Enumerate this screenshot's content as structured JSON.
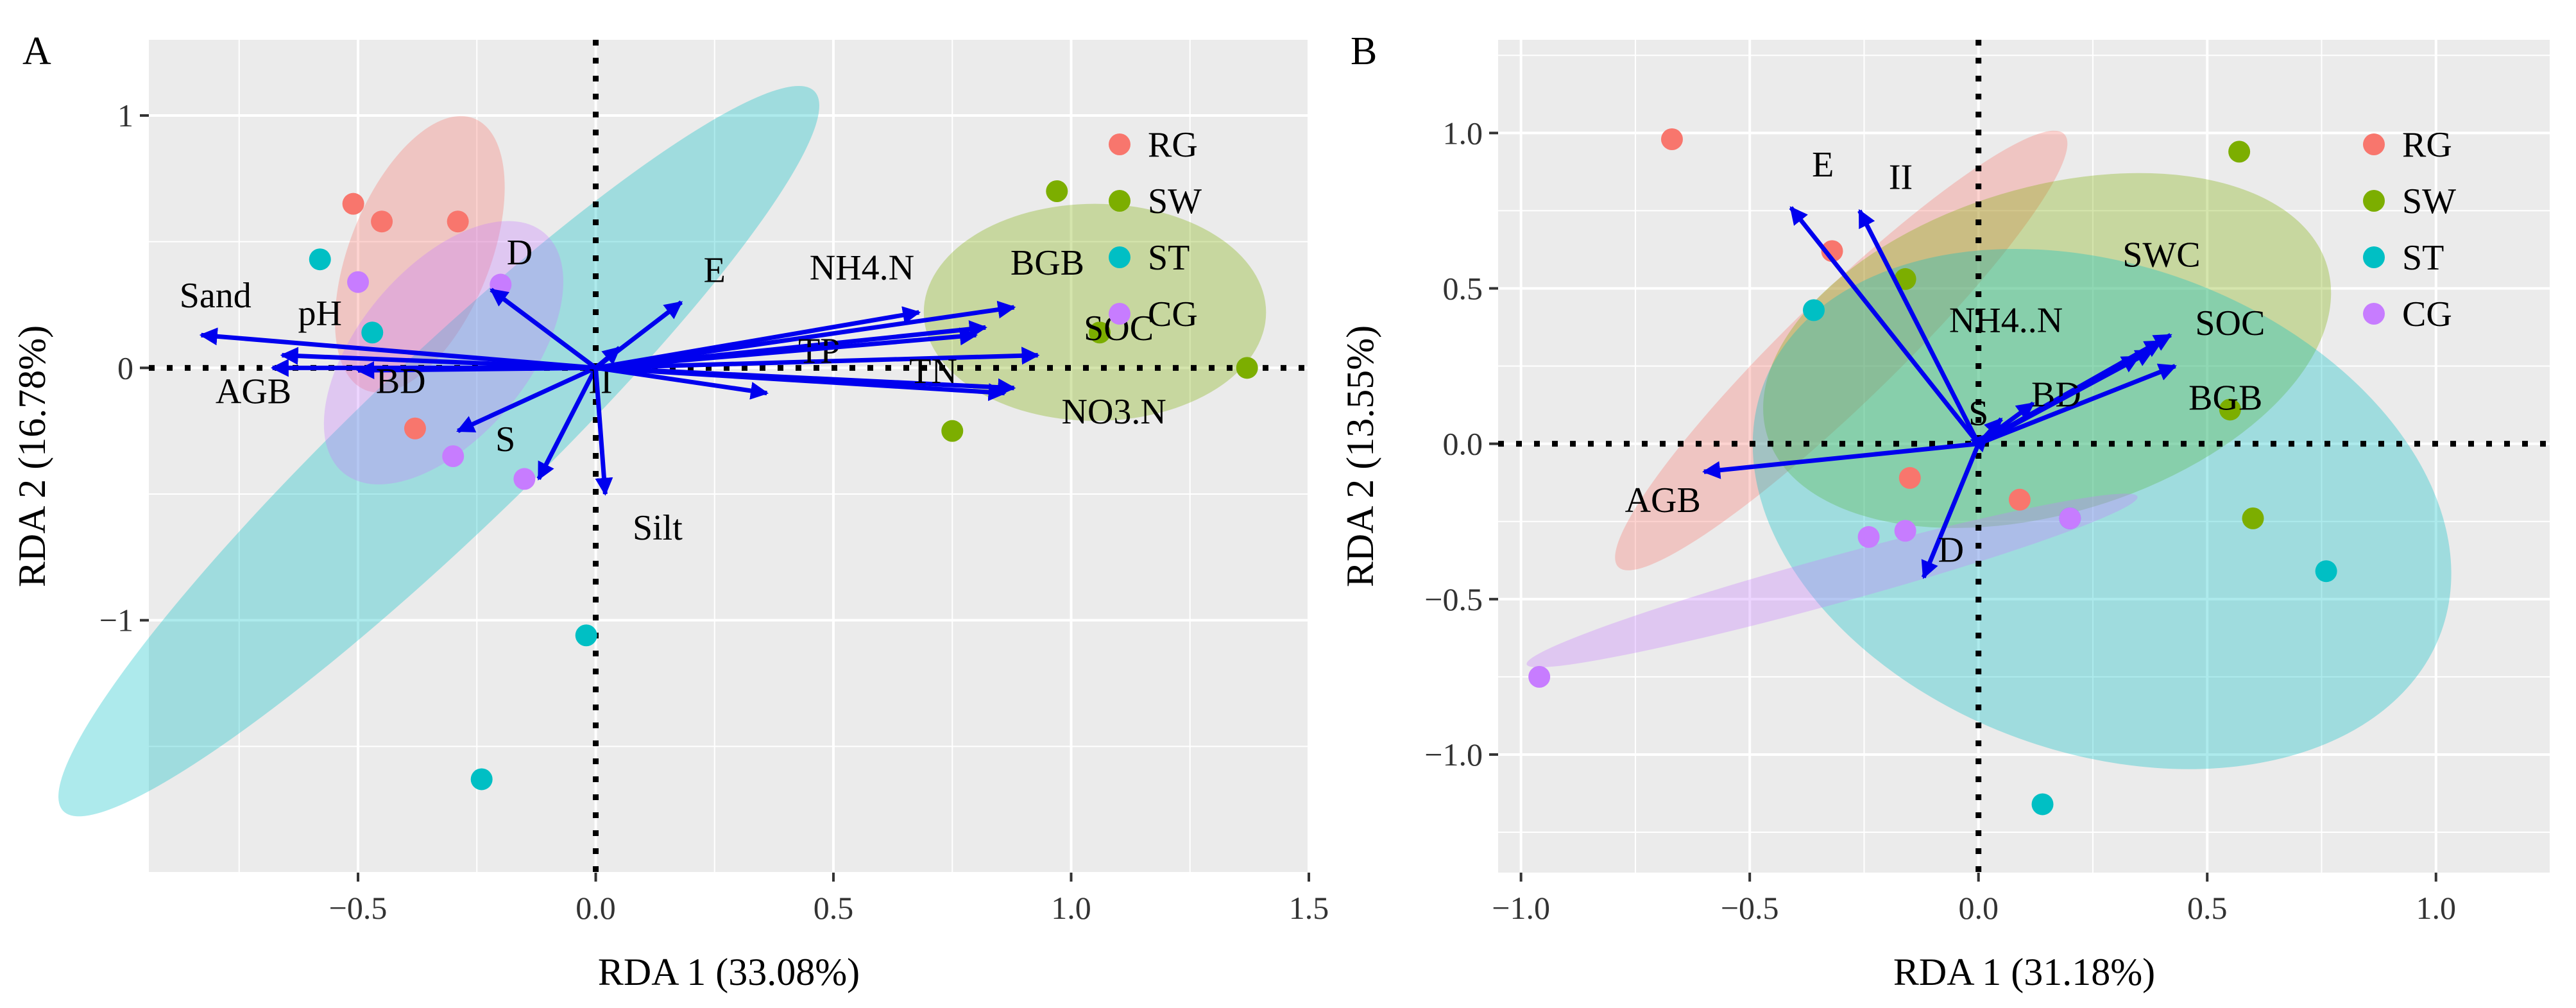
{
  "chart_data": [
    {
      "type": "scatter",
      "panel_label": "A",
      "xlabel": "RDA 1 (33.08%)",
      "ylabel": "RDA 2 (16.78%)",
      "xlim": [
        -0.94,
        1.5
      ],
      "ylim": [
        -2.0,
        1.3
      ],
      "xticks": [
        -0.5,
        0.0,
        0.5,
        1.0,
        1.5
      ],
      "xtick_labels": [
        "−0.5",
        "0.0",
        "0.5",
        "1.0",
        "1.5"
      ],
      "yticks": [
        -1,
        0,
        1
      ],
      "ytick_labels": [
        "−1",
        "0",
        "1"
      ],
      "legend": {
        "position": "top-right",
        "entries": [
          "RG",
          "SW",
          "ST",
          "CG"
        ]
      },
      "groups": [
        {
          "name": "RG",
          "color": "#F8766D",
          "points": [
            [
              -0.51,
              0.65
            ],
            [
              -0.45,
              0.58
            ],
            [
              -0.29,
              0.58
            ],
            [
              -0.38,
              -0.24
            ]
          ],
          "ellipse": {
            "cx": -0.37,
            "cy": 0.45,
            "rx": 0.55,
            "ry": 0.15,
            "angle": 78
          }
        },
        {
          "name": "SW",
          "color": "#7CAE00",
          "points": [
            [
              0.97,
              0.7
            ],
            [
              1.06,
              0.14
            ],
            [
              0.75,
              -0.25
            ],
            [
              1.37,
              0.0
            ]
          ],
          "ellipse": {
            "cx": 1.05,
            "cy": 0.22,
            "rx": 0.36,
            "ry": 0.43,
            "angle": 0
          }
        },
        {
          "name": "ST",
          "color": "#00BFC4",
          "points": [
            [
              -0.58,
              0.43
            ],
            [
              -0.47,
              0.14
            ],
            [
              -0.02,
              -1.06
            ],
            [
              -0.24,
              -1.63
            ]
          ],
          "ellipse": {
            "cx": -0.33,
            "cy": -0.33,
            "rx": 1.63,
            "ry": 0.2,
            "angle": 61
          }
        },
        {
          "name": "CG",
          "color": "#C77CFF",
          "points": [
            [
              -0.5,
              0.34
            ],
            [
              -0.3,
              -0.35
            ],
            [
              -0.15,
              -0.44
            ],
            [
              -0.2,
              0.33
            ]
          ],
          "ellipse": {
            "cx": -0.32,
            "cy": 0.06,
            "rx": 0.52,
            "ry": 0.19,
            "angle": 66
          }
        }
      ],
      "arrows": [
        {
          "label": "Sand",
          "x": -0.83,
          "y": 0.13,
          "lx": -0.8,
          "ly": 0.24
        },
        {
          "label": "pH",
          "x": -0.66,
          "y": 0.05,
          "lx": -0.58,
          "ly": 0.17
        },
        {
          "label": "AGB",
          "x": -0.68,
          "y": 0.0,
          "lx": -0.72,
          "ly": -0.14
        },
        {
          "label": "BD",
          "x": -0.5,
          "y": -0.01,
          "lx": -0.41,
          "ly": -0.1
        },
        {
          "label": "D",
          "x": -0.22,
          "y": 0.31,
          "lx": -0.16,
          "ly": 0.41
        },
        {
          "label": "S",
          "x": -0.29,
          "y": -0.25,
          "lx": -0.19,
          "ly": -0.33
        },
        {
          "label": "E",
          "x": 0.18,
          "y": 0.26,
          "lx": 0.25,
          "ly": 0.34
        },
        {
          "label": "II",
          "x": -0.12,
          "y": -0.44,
          "lx": 0.01,
          "ly": -0.1
        },
        {
          "label": "Silt",
          "x": 0.02,
          "y": -0.5,
          "lx": 0.13,
          "ly": -0.68
        },
        {
          "label": "NH4.N",
          "x": 0.68,
          "y": 0.22,
          "lx": 0.56,
          "ly": 0.35
        },
        {
          "label": "BGB",
          "x": 0.88,
          "y": 0.24,
          "lx": 0.95,
          "ly": 0.37
        },
        {
          "label": "SOC",
          "x": 0.93,
          "y": 0.05,
          "lx": 1.1,
          "ly": 0.11
        },
        {
          "label": "TP",
          "x": 0.82,
          "y": 0.16,
          "lx": 0.47,
          "ly": 0.02
        },
        {
          "label": "TN",
          "x": 0.88,
          "y": -0.08,
          "lx": 0.71,
          "ly": -0.06
        },
        {
          "label": "NO3.N",
          "x": 0.86,
          "y": -0.1,
          "lx": 1.09,
          "ly": -0.22
        },
        {
          "label": "",
          "x": 0.36,
          "y": -0.1,
          "lx": 0,
          "ly": 0
        },
        {
          "label": "",
          "x": 0.8,
          "y": 0.13,
          "lx": 0,
          "ly": 0
        },
        {
          "label": "",
          "x": 0.05,
          "y": 0.08,
          "lx": 0,
          "ly": 0
        }
      ]
    },
    {
      "type": "scatter",
      "panel_label": "B",
      "xlabel": "RDA 1 (31.18%)",
      "ylabel": "RDA 2 (13.55%)",
      "xlim": [
        -1.05,
        1.25
      ],
      "ylim": [
        -1.38,
        1.3
      ],
      "xticks": [
        -1.0,
        -0.5,
        0.0,
        0.5,
        1.0
      ],
      "xtick_labels": [
        "−1.0",
        "−0.5",
        "0.0",
        "0.5",
        "1.0"
      ],
      "yticks": [
        -1.0,
        -0.5,
        0.0,
        0.5,
        1.0
      ],
      "ytick_labels": [
        "−1.0",
        "−0.5",
        "0.0",
        "0.5",
        "1.0"
      ],
      "legend": {
        "position": "top-right",
        "entries": [
          "RG",
          "SW",
          "ST",
          "CG"
        ]
      },
      "groups": [
        {
          "name": "RG",
          "color": "#F8766D",
          "points": [
            [
              -0.67,
              0.98
            ],
            [
              -0.32,
              0.62
            ],
            [
              0.09,
              -0.18
            ],
            [
              -0.15,
              -0.11
            ]
          ],
          "ellipse": {
            "cx": -0.3,
            "cy": 0.3,
            "rx": 0.85,
            "ry": 0.13,
            "angle": 55
          }
        },
        {
          "name": "SW",
          "color": "#7CAE00",
          "points": [
            [
              0.57,
              0.94
            ],
            [
              0.6,
              -0.24
            ],
            [
              -0.16,
              0.53
            ],
            [
              0.55,
              0.11
            ]
          ],
          "ellipse": {
            "cx": 0.15,
            "cy": 0.3,
            "rx": 0.67,
            "ry": 0.48,
            "angle": 24
          }
        },
        {
          "name": "ST",
          "color": "#00BFC4",
          "points": [
            [
              -0.36,
              0.43
            ],
            [
              0.76,
              -0.41
            ],
            [
              0.14,
              -1.16
            ],
            [
              0.2,
              -0.24
            ]
          ],
          "ellipse": {
            "cx": 0.27,
            "cy": -0.21,
            "rx": 0.84,
            "ry": 0.7,
            "angle": -28
          }
        },
        {
          "name": "CG",
          "color": "#C77CFF",
          "points": [
            [
              -0.96,
              -0.75
            ],
            [
              -0.24,
              -0.3
            ],
            [
              -0.16,
              -0.28
            ],
            [
              0.2,
              -0.24
            ]
          ],
          "ellipse": {
            "cx": -0.32,
            "cy": -0.44,
            "rx": 0.72,
            "ry": 0.07,
            "angle": 22
          }
        }
      ],
      "arrows": [
        {
          "label": "AGB",
          "x": -0.6,
          "y": -0.09,
          "lx": -0.69,
          "ly": -0.22
        },
        {
          "label": "E",
          "x": -0.41,
          "y": 0.76,
          "lx": -0.34,
          "ly": 0.86
        },
        {
          "label": "II",
          "x": -0.26,
          "y": 0.75,
          "lx": -0.17,
          "ly": 0.82
        },
        {
          "label": "NH4..N",
          "x": 0.05,
          "y": 0.08,
          "lx": 0.06,
          "ly": 0.36
        },
        {
          "label": "SWC",
          "x": 0.4,
          "y": 0.33,
          "lx": 0.4,
          "ly": 0.57
        },
        {
          "label": "SOC",
          "x": 0.42,
          "y": 0.35,
          "lx": 0.55,
          "ly": 0.35
        },
        {
          "label": "BGB",
          "x": 0.43,
          "y": 0.25,
          "lx": 0.54,
          "ly": 0.11
        },
        {
          "label": "BD",
          "x": 0.12,
          "y": 0.13,
          "lx": 0.17,
          "ly": 0.12
        },
        {
          "label": "S",
          "x": 0.02,
          "y": 0.03,
          "lx": 0.0,
          "ly": 0.06
        },
        {
          "label": "D",
          "x": -0.12,
          "y": -0.43,
          "lx": -0.06,
          "ly": -0.38
        },
        {
          "label": "",
          "x": 0.38,
          "y": 0.3,
          "lx": 0,
          "ly": 0
        },
        {
          "label": "",
          "x": 0.35,
          "y": 0.28,
          "lx": 0,
          "ly": 0
        }
      ]
    }
  ]
}
